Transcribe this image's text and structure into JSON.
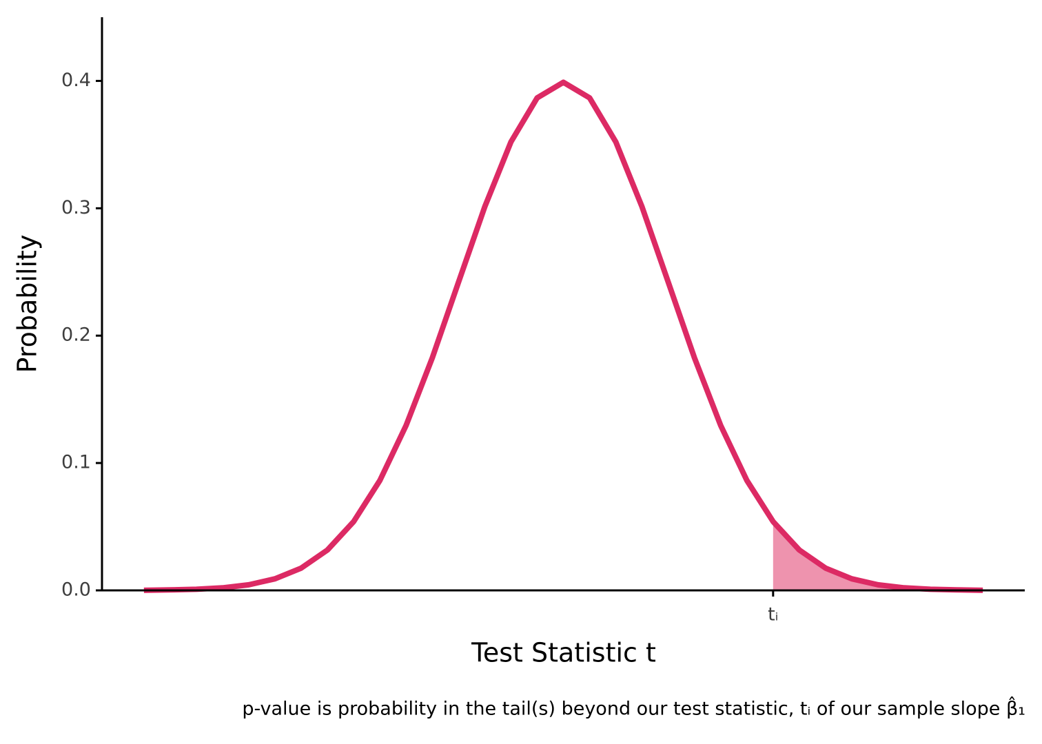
{
  "chart_data": {
    "type": "line",
    "x_label": "Test Statistic t",
    "y_label": "Probability",
    "caption": "p-value is probability in the tail(s) beyond our test statistic, tᵢ of our sample slope β̂₁",
    "x": [
      -4,
      -3.75,
      -3.5,
      -3.25,
      -3,
      -2.75,
      -2.5,
      -2.25,
      -2,
      -1.75,
      -1.5,
      -1.25,
      -1,
      -0.75,
      -0.5,
      -0.25,
      0,
      0.25,
      0.5,
      0.75,
      1,
      1.25,
      1.5,
      1.75,
      2,
      2.25,
      2.5,
      2.75,
      3,
      3.25,
      3.5,
      3.75,
      4
    ],
    "series": [
      {
        "color": "#dc2a64",
        "shade_color": "#ee93ae",
        "values": [
          0.0001,
          0.0004,
          0.0009,
          0.002,
          0.0044,
          0.0091,
          0.0175,
          0.0317,
          0.054,
          0.0863,
          0.1295,
          0.1826,
          0.242,
          0.3011,
          0.3521,
          0.3867,
          0.3989,
          0.3867,
          0.3521,
          0.3011,
          0.242,
          0.1826,
          0.1295,
          0.0863,
          0.054,
          0.0317,
          0.0175,
          0.0091,
          0.0044,
          0.002,
          0.0009,
          0.0004,
          0.0001
        ]
      }
    ],
    "shade_from": 2,
    "xlim": [
      -4.4,
      4.4
    ],
    "ylim": [
      0,
      0.45
    ],
    "xticks": [
      {
        "value": 2,
        "label": "tᵢ"
      }
    ],
    "yticks": [
      {
        "value": 0,
        "label": "0.0"
      },
      0.1,
      0.2,
      0.3,
      0.4
    ],
    "grid": false
  }
}
